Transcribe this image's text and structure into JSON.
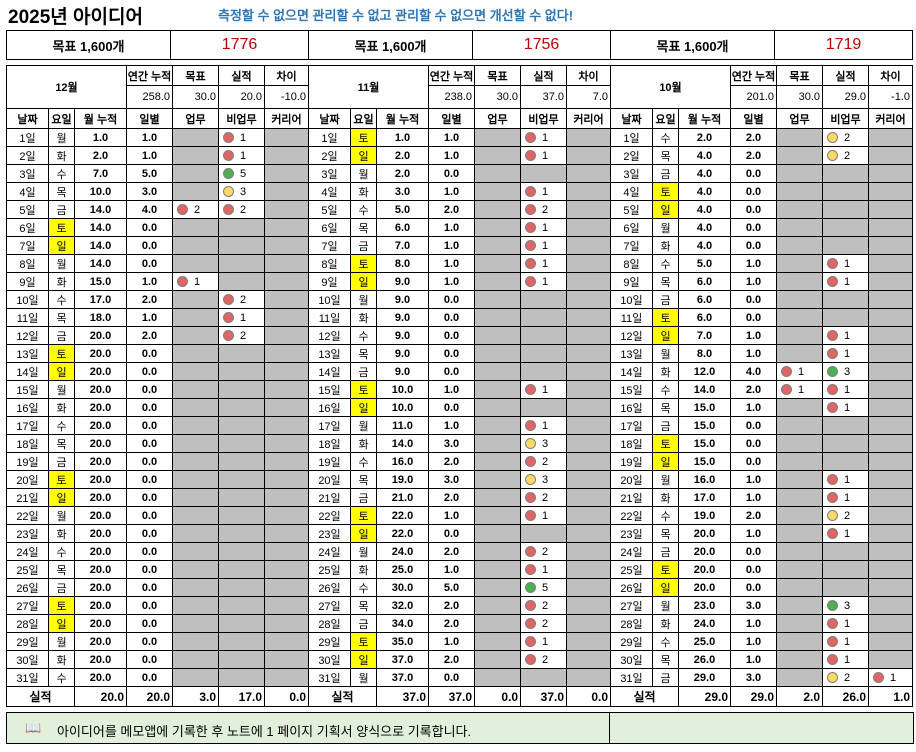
{
  "header": {
    "title": "2025년 아이디어",
    "slogan": "측정할 수 없으면 관리할 수 없고 관리할 수 없으면 개선할 수 없다!"
  },
  "goals": [
    {
      "label": "목표 1,600개",
      "value": "1776"
    },
    {
      "label": "목표 1,600개",
      "value": "1756"
    },
    {
      "label": "목표 1,600개",
      "value": "1719"
    }
  ],
  "columns": {
    "summary": [
      "연간 누적",
      "목표",
      "실적",
      "차이"
    ],
    "day": [
      "날짜",
      "요일",
      "월 누적",
      "일별",
      "업무",
      "비업무",
      "커리어"
    ]
  },
  "total_label": "실적",
  "months": [
    {
      "name": "12월",
      "summary": [
        "258.0",
        "30.0",
        "20.0",
        "-10.0"
      ],
      "totals": [
        "20.0",
        "20.0",
        "3.0",
        "17.0",
        "0.0"
      ],
      "days": [
        [
          "1일",
          "월",
          "1.0",
          "1.0",
          "",
          "red 1",
          ""
        ],
        [
          "2일",
          "화",
          "2.0",
          "1.0",
          "",
          "red 1",
          ""
        ],
        [
          "3일",
          "수",
          "7.0",
          "5.0",
          "",
          "green 5",
          ""
        ],
        [
          "4일",
          "목",
          "10.0",
          "3.0",
          "",
          "yellow 3",
          ""
        ],
        [
          "5일",
          "금",
          "14.0",
          "4.0",
          "red 2",
          "red 2",
          ""
        ],
        [
          "6일",
          "토",
          "14.0",
          "0.0",
          "",
          "",
          ""
        ],
        [
          "7일",
          "일",
          "14.0",
          "0.0",
          "",
          "",
          ""
        ],
        [
          "8일",
          "월",
          "14.0",
          "0.0",
          "",
          "",
          ""
        ],
        [
          "9일",
          "화",
          "15.0",
          "1.0",
          "red 1",
          "",
          ""
        ],
        [
          "10일",
          "수",
          "17.0",
          "2.0",
          "",
          "red 2",
          ""
        ],
        [
          "11일",
          "목",
          "18.0",
          "1.0",
          "",
          "red 1",
          ""
        ],
        [
          "12일",
          "금",
          "20.0",
          "2.0",
          "",
          "red 2",
          ""
        ],
        [
          "13일",
          "토",
          "20.0",
          "0.0",
          "",
          "",
          ""
        ],
        [
          "14일",
          "일",
          "20.0",
          "0.0",
          "",
          "",
          ""
        ],
        [
          "15일",
          "월",
          "20.0",
          "0.0",
          "",
          "",
          ""
        ],
        [
          "16일",
          "화",
          "20.0",
          "0.0",
          "",
          "",
          ""
        ],
        [
          "17일",
          "수",
          "20.0",
          "0.0",
          "",
          "",
          ""
        ],
        [
          "18일",
          "목",
          "20.0",
          "0.0",
          "",
          "",
          ""
        ],
        [
          "19일",
          "금",
          "20.0",
          "0.0",
          "",
          "",
          ""
        ],
        [
          "20일",
          "토",
          "20.0",
          "0.0",
          "",
          "",
          ""
        ],
        [
          "21일",
          "일",
          "20.0",
          "0.0",
          "",
          "",
          ""
        ],
        [
          "22일",
          "월",
          "20.0",
          "0.0",
          "",
          "",
          ""
        ],
        [
          "23일",
          "화",
          "20.0",
          "0.0",
          "",
          "",
          ""
        ],
        [
          "24일",
          "수",
          "20.0",
          "0.0",
          "",
          "",
          ""
        ],
        [
          "25일",
          "목",
          "20.0",
          "0.0",
          "",
          "",
          ""
        ],
        [
          "26일",
          "금",
          "20.0",
          "0.0",
          "",
          "",
          ""
        ],
        [
          "27일",
          "토",
          "20.0",
          "0.0",
          "",
          "",
          ""
        ],
        [
          "28일",
          "일",
          "20.0",
          "0.0",
          "",
          "",
          ""
        ],
        [
          "29일",
          "월",
          "20.0",
          "0.0",
          "",
          "",
          ""
        ],
        [
          "30일",
          "화",
          "20.0",
          "0.0",
          "",
          "",
          ""
        ],
        [
          "31일",
          "수",
          "20.0",
          "0.0",
          "",
          "",
          ""
        ]
      ]
    },
    {
      "name": "11월",
      "summary": [
        "238.0",
        "30.0",
        "37.0",
        "7.0"
      ],
      "totals": [
        "37.0",
        "37.0",
        "0.0",
        "37.0",
        "0.0"
      ],
      "days": [
        [
          "1일",
          "토",
          "1.0",
          "1.0",
          "",
          "red 1",
          ""
        ],
        [
          "2일",
          "일",
          "2.0",
          "1.0",
          "",
          "red 1",
          ""
        ],
        [
          "3일",
          "월",
          "2.0",
          "0.0",
          "",
          "",
          ""
        ],
        [
          "4일",
          "화",
          "3.0",
          "1.0",
          "",
          "red 1",
          ""
        ],
        [
          "5일",
          "수",
          "5.0",
          "2.0",
          "",
          "red 2",
          ""
        ],
        [
          "6일",
          "목",
          "6.0",
          "1.0",
          "",
          "red 1",
          ""
        ],
        [
          "7일",
          "금",
          "7.0",
          "1.0",
          "",
          "red 1",
          ""
        ],
        [
          "8일",
          "토",
          "8.0",
          "1.0",
          "",
          "red 1",
          ""
        ],
        [
          "9일",
          "일",
          "9.0",
          "1.0",
          "",
          "red 1",
          ""
        ],
        [
          "10일",
          "월",
          "9.0",
          "0.0",
          "",
          "",
          ""
        ],
        [
          "11일",
          "화",
          "9.0",
          "0.0",
          "",
          "",
          ""
        ],
        [
          "12일",
          "수",
          "9.0",
          "0.0",
          "",
          "",
          ""
        ],
        [
          "13일",
          "목",
          "9.0",
          "0.0",
          "",
          "",
          ""
        ],
        [
          "14일",
          "금",
          "9.0",
          "0.0",
          "",
          "",
          ""
        ],
        [
          "15일",
          "토",
          "10.0",
          "1.0",
          "",
          "red 1",
          ""
        ],
        [
          "16일",
          "일",
          "10.0",
          "0.0",
          "",
          "",
          ""
        ],
        [
          "17일",
          "월",
          "11.0",
          "1.0",
          "",
          "red 1",
          ""
        ],
        [
          "18일",
          "화",
          "14.0",
          "3.0",
          "",
          "yellow 3",
          ""
        ],
        [
          "19일",
          "수",
          "16.0",
          "2.0",
          "",
          "red 2",
          ""
        ],
        [
          "20일",
          "목",
          "19.0",
          "3.0",
          "",
          "yellow 3",
          ""
        ],
        [
          "21일",
          "금",
          "21.0",
          "2.0",
          "",
          "red 2",
          ""
        ],
        [
          "22일",
          "토",
          "22.0",
          "1.0",
          "",
          "red 1",
          ""
        ],
        [
          "23일",
          "일",
          "22.0",
          "0.0",
          "",
          "",
          ""
        ],
        [
          "24일",
          "월",
          "24.0",
          "2.0",
          "",
          "red 2",
          ""
        ],
        [
          "25일",
          "화",
          "25.0",
          "1.0",
          "",
          "red 1",
          ""
        ],
        [
          "26일",
          "수",
          "30.0",
          "5.0",
          "",
          "green 5",
          ""
        ],
        [
          "27일",
          "목",
          "32.0",
          "2.0",
          "",
          "red 2",
          ""
        ],
        [
          "28일",
          "금",
          "34.0",
          "2.0",
          "",
          "red 2",
          ""
        ],
        [
          "29일",
          "토",
          "35.0",
          "1.0",
          "",
          "red 1",
          ""
        ],
        [
          "30일",
          "일",
          "37.0",
          "2.0",
          "",
          "red 2",
          ""
        ],
        [
          "31일",
          "월",
          "37.0",
          "0.0",
          "",
          "",
          ""
        ]
      ]
    },
    {
      "name": "10월",
      "summary": [
        "201.0",
        "30.0",
        "29.0",
        "-1.0"
      ],
      "totals": [
        "29.0",
        "29.0",
        "2.0",
        "26.0",
        "1.0"
      ],
      "days": [
        [
          "1일",
          "수",
          "2.0",
          "2.0",
          "",
          "yellow 2",
          ""
        ],
        [
          "2일",
          "목",
          "4.0",
          "2.0",
          "",
          "yellow 2",
          ""
        ],
        [
          "3일",
          "금",
          "4.0",
          "0.0",
          "",
          "",
          ""
        ],
        [
          "4일",
          "토",
          "4.0",
          "0.0",
          "",
          "",
          ""
        ],
        [
          "5일",
          "일",
          "4.0",
          "0.0",
          "",
          "",
          ""
        ],
        [
          "6일",
          "월",
          "4.0",
          "0.0",
          "",
          "",
          ""
        ],
        [
          "7일",
          "화",
          "4.0",
          "0.0",
          "",
          "",
          ""
        ],
        [
          "8일",
          "수",
          "5.0",
          "1.0",
          "",
          "red 1",
          ""
        ],
        [
          "9일",
          "목",
          "6.0",
          "1.0",
          "",
          "red 1",
          ""
        ],
        [
          "10일",
          "금",
          "6.0",
          "0.0",
          "",
          "",
          ""
        ],
        [
          "11일",
          "토",
          "6.0",
          "0.0",
          "",
          "",
          ""
        ],
        [
          "12일",
          "일",
          "7.0",
          "1.0",
          "",
          "red 1",
          ""
        ],
        [
          "13일",
          "월",
          "8.0",
          "1.0",
          "",
          "red 1",
          ""
        ],
        [
          "14일",
          "화",
          "12.0",
          "4.0",
          "red 1",
          "green 3",
          ""
        ],
        [
          "15일",
          "수",
          "14.0",
          "2.0",
          "red 1",
          "red 1",
          ""
        ],
        [
          "16일",
          "목",
          "15.0",
          "1.0",
          "",
          "red 1",
          ""
        ],
        [
          "17일",
          "금",
          "15.0",
          "0.0",
          "",
          "",
          ""
        ],
        [
          "18일",
          "토",
          "15.0",
          "0.0",
          "",
          "",
          ""
        ],
        [
          "19일",
          "일",
          "15.0",
          "0.0",
          "",
          "",
          ""
        ],
        [
          "20일",
          "월",
          "16.0",
          "1.0",
          "",
          "red 1",
          ""
        ],
        [
          "21일",
          "화",
          "17.0",
          "1.0",
          "",
          "red 1",
          ""
        ],
        [
          "22일",
          "수",
          "19.0",
          "2.0",
          "",
          "yellow 2",
          ""
        ],
        [
          "23일",
          "목",
          "20.0",
          "1.0",
          "",
          "red 1",
          ""
        ],
        [
          "24일",
          "금",
          "20.0",
          "0.0",
          "",
          "",
          ""
        ],
        [
          "25일",
          "토",
          "20.0",
          "0.0",
          "",
          "",
          ""
        ],
        [
          "26일",
          "일",
          "20.0",
          "0.0",
          "",
          "",
          ""
        ],
        [
          "27일",
          "월",
          "23.0",
          "3.0",
          "",
          "green 3",
          ""
        ],
        [
          "28일",
          "화",
          "24.0",
          "1.0",
          "",
          "red 1",
          ""
        ],
        [
          "29일",
          "수",
          "25.0",
          "1.0",
          "",
          "red 1",
          ""
        ],
        [
          "30일",
          "목",
          "26.0",
          "1.0",
          "",
          "red 1",
          ""
        ],
        [
          "31일",
          "금",
          "29.0",
          "3.0",
          "",
          "yellow 2",
          "red 1"
        ]
      ]
    }
  ],
  "footer": {
    "icon": "book-icon",
    "note": "아이디어를 메모앱에 기록한 후 노트에 1 페이지 기획서 양식으로 기록합니다."
  }
}
